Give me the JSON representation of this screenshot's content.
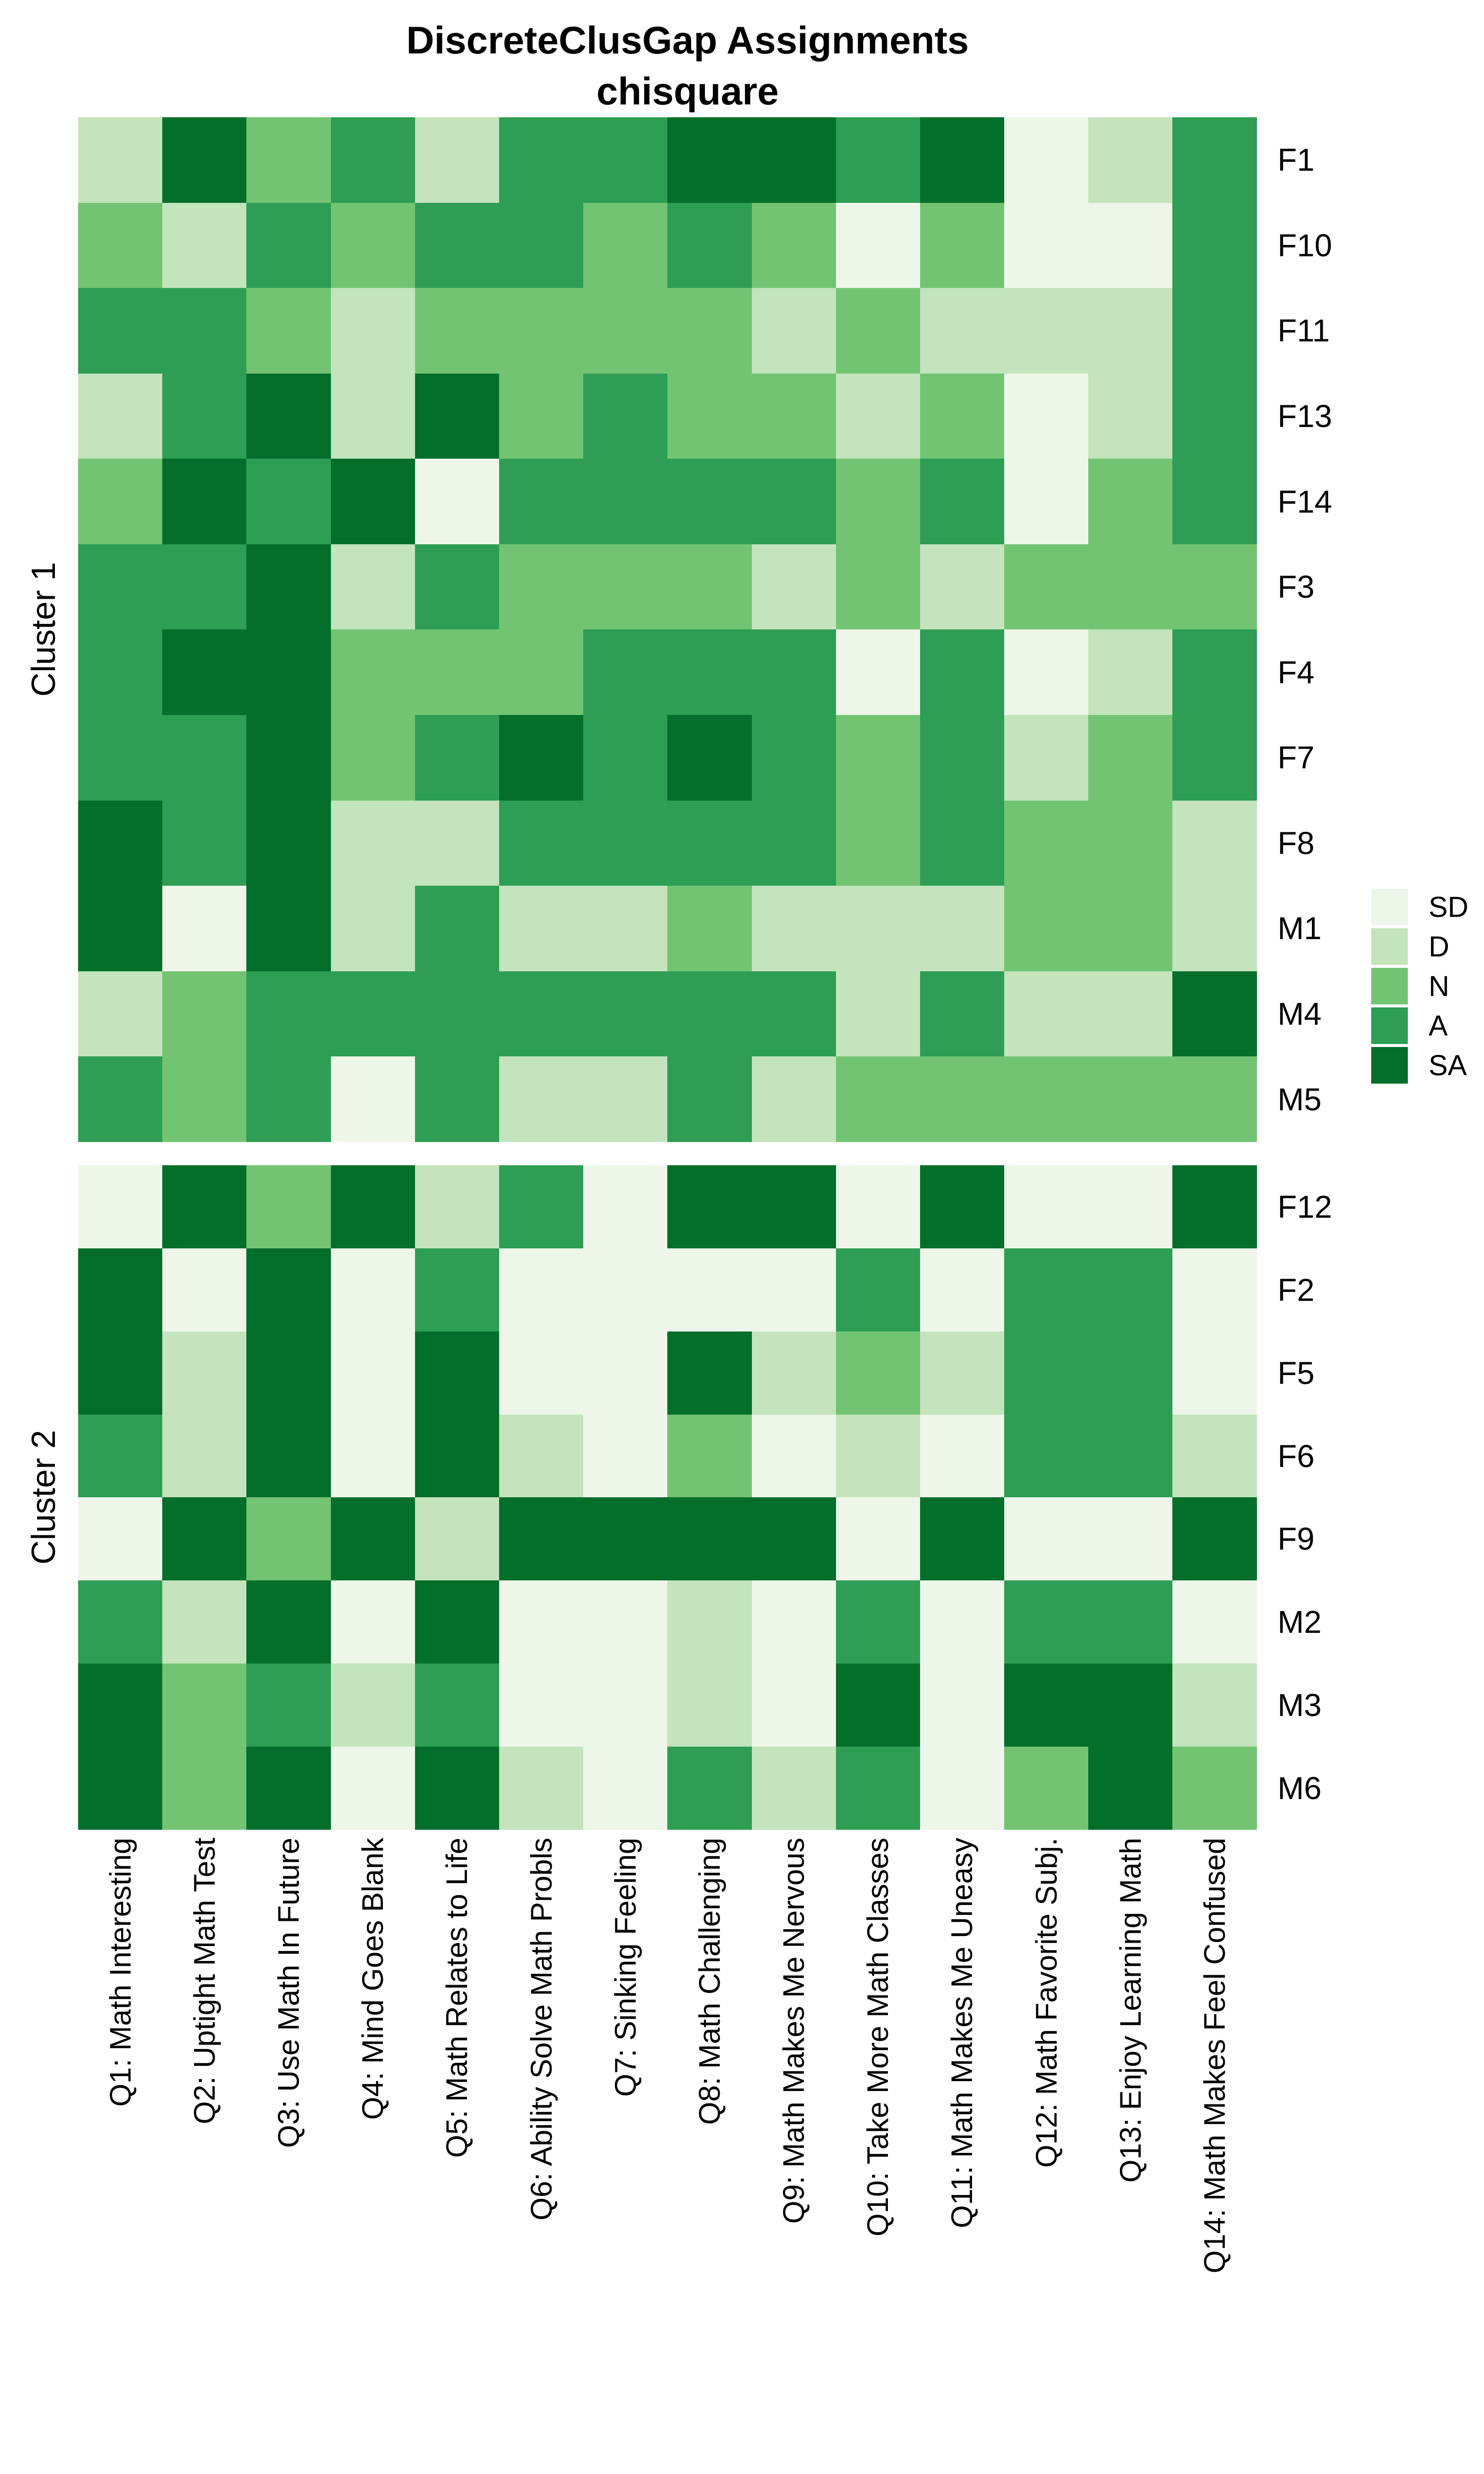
{
  "figure": {
    "title": "DiscreteClusGap Assignments",
    "subtitle": "chisquare"
  },
  "chart_data": {
    "type": "heatmap",
    "title": "DiscreteClusGap Assignments",
    "subtitle": "chisquare",
    "grid": "off",
    "legend_position": "right-middle",
    "value_levels": [
      "SD",
      "D",
      "N",
      "A",
      "SA"
    ],
    "level_colors": {
      "SD": "#edf6e9",
      "D": "#c3e4bc",
      "N": "#72c473",
      "A": "#2d9e53",
      "SA": "#046e2b"
    },
    "x_axis_labels": [
      "Q1: Math Interesting",
      "Q2: Uptight Math Test",
      "Q3: Use Math In Future",
      "Q4: Mind Goes Blank",
      "Q5: Math Relates to Life",
      "Q6: Ability Solve Math Probls",
      "Q7: Sinking Feeling",
      "Q8: Math Challenging",
      "Q9: Math Makes Me Nervous",
      "Q10: Take More Math Classes",
      "Q11: Math Makes Me Uneasy",
      "Q12: Math Favorite Subj.",
      "Q13: Enjoy Learning Math",
      "Q14: Math Makes Feel Confused"
    ],
    "clusters": [
      {
        "name": "Cluster 1",
        "rows": [
          {
            "label": "F1",
            "values": [
              "D",
              "SA",
              "N",
              "A",
              "D",
              "A",
              "A",
              "SA",
              "SA",
              "A",
              "SA",
              "SD",
              "D",
              "A"
            ]
          },
          {
            "label": "F10",
            "values": [
              "N",
              "D",
              "A",
              "N",
              "A",
              "A",
              "N",
              "A",
              "N",
              "SD",
              "N",
              "SD",
              "SD",
              "A"
            ]
          },
          {
            "label": "F11",
            "values": [
              "A",
              "A",
              "N",
              "D",
              "N",
              "N",
              "N",
              "N",
              "D",
              "N",
              "D",
              "D",
              "D",
              "A"
            ]
          },
          {
            "label": "F13",
            "values": [
              "D",
              "A",
              "SA",
              "D",
              "SA",
              "N",
              "A",
              "N",
              "N",
              "D",
              "N",
              "SD",
              "D",
              "A"
            ]
          },
          {
            "label": "F14",
            "values": [
              "N",
              "SA",
              "A",
              "SA",
              "SD",
              "A",
              "A",
              "A",
              "A",
              "N",
              "A",
              "SD",
              "N",
              "A"
            ]
          },
          {
            "label": "F3",
            "values": [
              "A",
              "A",
              "SA",
              "D",
              "A",
              "N",
              "N",
              "N",
              "D",
              "N",
              "D",
              "N",
              "N",
              "N"
            ]
          },
          {
            "label": "F4",
            "values": [
              "A",
              "SA",
              "SA",
              "N",
              "N",
              "N",
              "A",
              "A",
              "A",
              "SD",
              "A",
              "SD",
              "D",
              "A"
            ]
          },
          {
            "label": "F7",
            "values": [
              "A",
              "A",
              "SA",
              "N",
              "A",
              "SA",
              "A",
              "SA",
              "A",
              "N",
              "A",
              "D",
              "N",
              "A"
            ]
          },
          {
            "label": "F8",
            "values": [
              "SA",
              "A",
              "SA",
              "D",
              "D",
              "A",
              "A",
              "A",
              "A",
              "N",
              "A",
              "N",
              "N",
              "D"
            ]
          },
          {
            "label": "M1",
            "values": [
              "SA",
              "SD",
              "SA",
              "D",
              "A",
              "D",
              "D",
              "N",
              "D",
              "D",
              "D",
              "N",
              "N",
              "D"
            ]
          },
          {
            "label": "M4",
            "values": [
              "D",
              "N",
              "A",
              "A",
              "A",
              "A",
              "A",
              "A",
              "A",
              "D",
              "A",
              "D",
              "D",
              "SA"
            ]
          },
          {
            "label": "M5",
            "values": [
              "A",
              "N",
              "A",
              "SD",
              "A",
              "D",
              "D",
              "A",
              "D",
              "N",
              "N",
              "N",
              "N",
              "N"
            ]
          }
        ]
      },
      {
        "name": "Cluster 2",
        "rows": [
          {
            "label": "F12",
            "values": [
              "SD",
              "SA",
              "N",
              "SA",
              "D",
              "A",
              "SD",
              "SA",
              "SA",
              "SD",
              "SA",
              "SD",
              "SD",
              "SA"
            ]
          },
          {
            "label": "F2",
            "values": [
              "SA",
              "SD",
              "SA",
              "SD",
              "A",
              "SD",
              "SD",
              "SD",
              "SD",
              "A",
              "SD",
              "A",
              "A",
              "SD"
            ]
          },
          {
            "label": "F5",
            "values": [
              "SA",
              "D",
              "SA",
              "SD",
              "SA",
              "SD",
              "SD",
              "SA",
              "D",
              "N",
              "D",
              "A",
              "A",
              "SD"
            ]
          },
          {
            "label": "F6",
            "values": [
              "A",
              "D",
              "SA",
              "SD",
              "SA",
              "D",
              "SD",
              "N",
              "SD",
              "D",
              "SD",
              "A",
              "A",
              "D"
            ]
          },
          {
            "label": "F9",
            "values": [
              "SD",
              "SA",
              "N",
              "SA",
              "D",
              "SA",
              "SA",
              "SA",
              "SA",
              "SD",
              "SA",
              "SD",
              "SD",
              "SA"
            ]
          },
          {
            "label": "M2",
            "values": [
              "A",
              "D",
              "SA",
              "SD",
              "SA",
              "SD",
              "SD",
              "D",
              "SD",
              "A",
              "SD",
              "A",
              "A",
              "SD"
            ]
          },
          {
            "label": "M3",
            "values": [
              "SA",
              "N",
              "A",
              "D",
              "A",
              "SD",
              "SD",
              "D",
              "SD",
              "SA",
              "SD",
              "SA",
              "SA",
              "D"
            ]
          },
          {
            "label": "M6",
            "values": [
              "SA",
              "N",
              "SA",
              "SD",
              "SA",
              "D",
              "SD",
              "A",
              "D",
              "A",
              "SD",
              "N",
              "SA",
              "N"
            ]
          }
        ]
      }
    ]
  }
}
